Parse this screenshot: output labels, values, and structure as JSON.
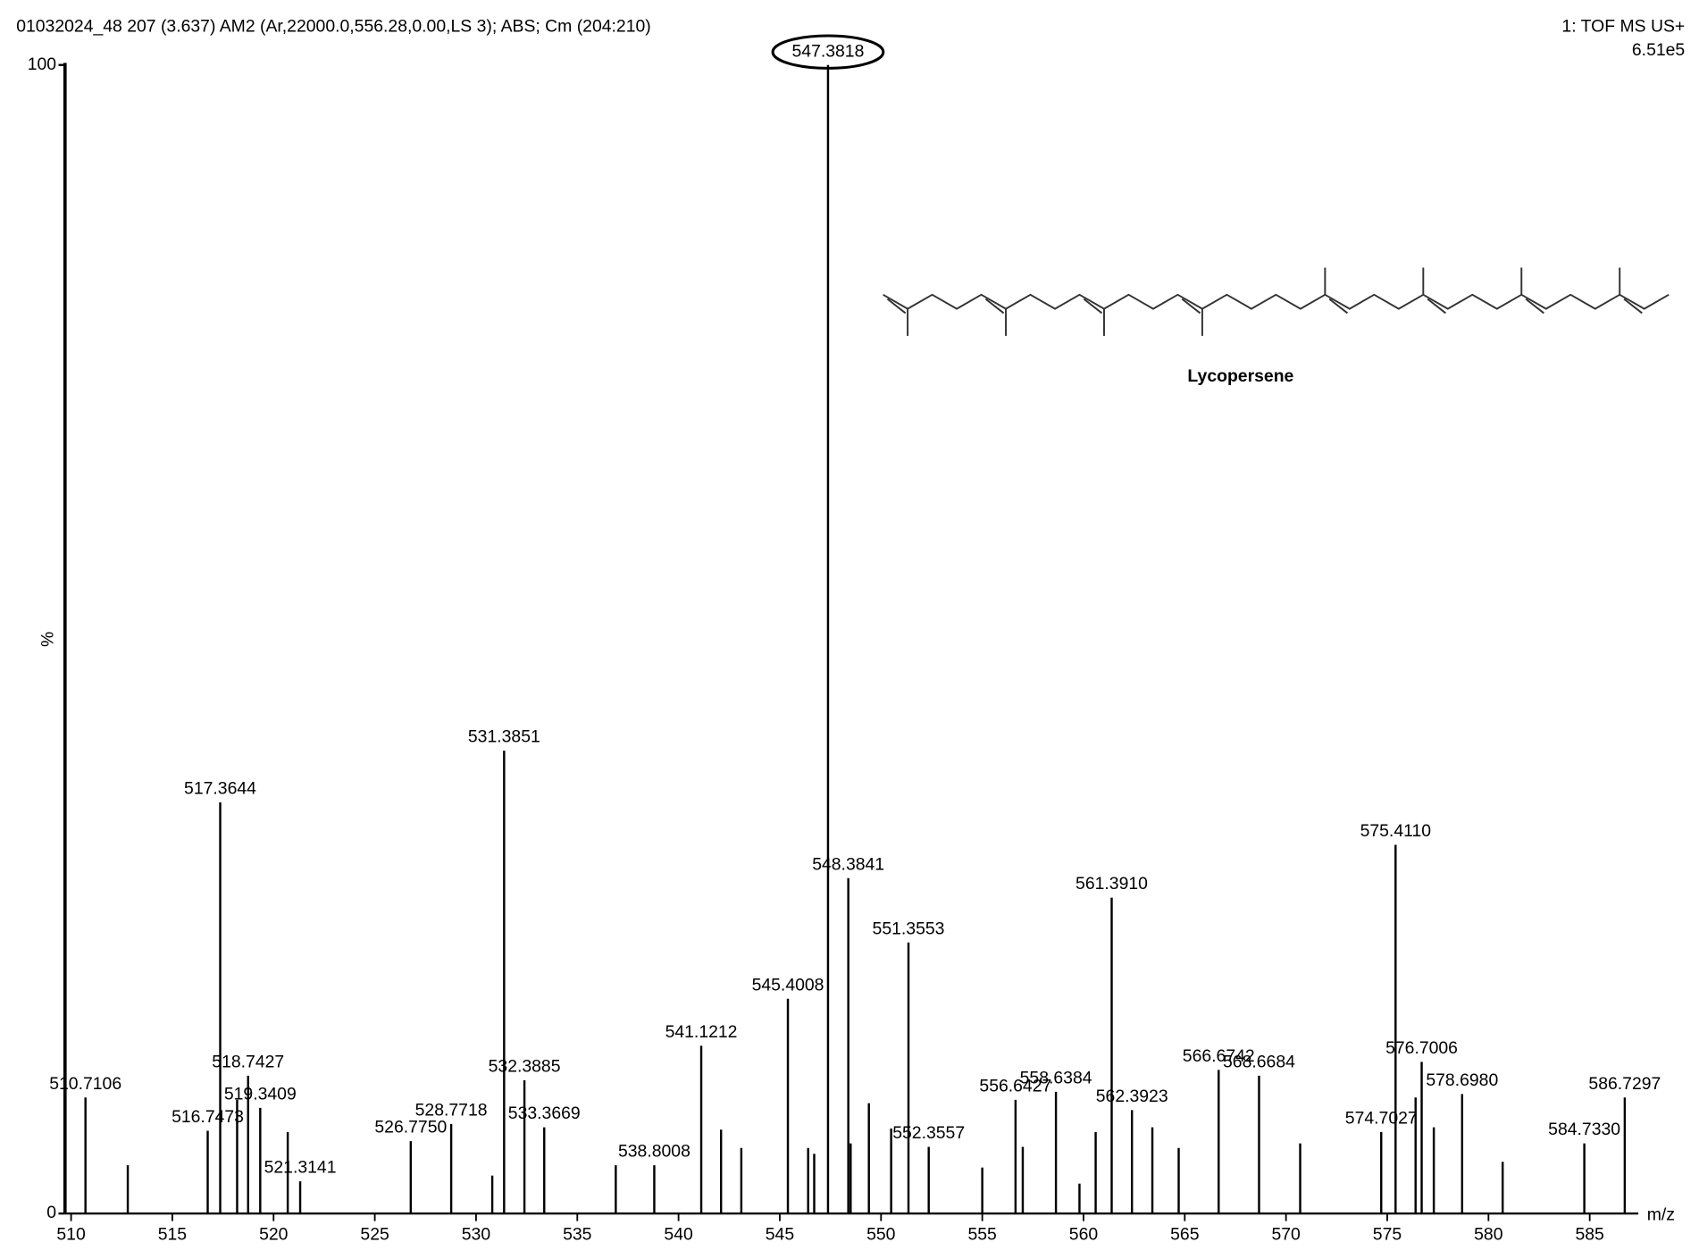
{
  "chart_data": {
    "type": "stem",
    "title": "01032024_48 207 (3.637) AM2 (Ar,22000.0,556.28,0.00,LS 3); ABS; Cm (204:210)",
    "instrument": "1: TOF MS US+",
    "max_intensity": "6.51e5",
    "structure_name": "Lycopersene",
    "ylabel": "%",
    "xlabel": "m/z",
    "color": "#000000",
    "x": [
      510.7106,
      512.8,
      516.7473,
      517.3644,
      518.2,
      518.7427,
      519.3409,
      520.7,
      521.3141,
      526.775,
      528.7718,
      530.8,
      531.3851,
      532.3885,
      533.3669,
      536.9,
      538.8008,
      541.1212,
      542.1,
      543.1,
      545.4008,
      546.4,
      546.7,
      547.3818,
      548.3841,
      548.5,
      549.4,
      550.5,
      551.3553,
      552.3557,
      555.0,
      556.6427,
      557.0,
      558.6384,
      559.8,
      560.6,
      561.391,
      562.3923,
      563.4,
      564.7,
      566.6742,
      568.6684,
      570.7,
      574.7027,
      575.411,
      576.4,
      576.7006,
      577.3,
      578.698,
      580.7,
      584.733,
      586.7297
    ],
    "values": [
      10.1,
      4.2,
      7.2,
      35.8,
      9.9,
      12.0,
      9.2,
      7.1,
      2.8,
      6.3,
      7.8,
      3.3,
      40.3,
      11.6,
      7.5,
      4.2,
      4.2,
      14.6,
      7.3,
      5.7,
      18.7,
      5.7,
      5.2,
      100,
      29.2,
      6.1,
      9.6,
      7.4,
      23.6,
      5.8,
      4.0,
      9.9,
      5.8,
      10.6,
      2.6,
      7.1,
      27.5,
      9.0,
      7.5,
      5.7,
      12.5,
      12.0,
      6.1,
      7.1,
      32.1,
      10.1,
      13.2,
      7.5,
      10.4,
      4.5,
      6.1,
      10.1
    ],
    "labels": [
      "510.7106",
      null,
      "516.7473",
      "517.3644",
      null,
      "518.7427",
      "519.3409",
      null,
      "521.3141",
      "526.7750",
      "528.7718",
      null,
      "531.3851",
      "532.3885",
      "533.3669",
      null,
      "538.8008",
      "541.1212",
      null,
      null,
      "545.4008",
      null,
      null,
      "547.3818",
      "548.3841",
      null,
      null,
      null,
      "551.3553",
      "552.3557",
      null,
      "556.6427",
      null,
      "558.6384",
      null,
      null,
      "561.3910",
      "562.3923",
      null,
      null,
      "566.6742",
      "568.6684",
      null,
      "574.7027",
      "575.4110",
      null,
      "576.7006",
      null,
      "578.6980",
      null,
      "584.7330",
      "586.7297"
    ],
    "xlim": [
      509.7,
      587.4
    ],
    "ylim": [
      0,
      100
    ],
    "xticks": [
      510,
      515,
      520,
      525,
      530,
      535,
      540,
      545,
      550,
      555,
      560,
      565,
      570,
      575,
      580,
      585
    ],
    "yticks": [
      0,
      100
    ]
  }
}
